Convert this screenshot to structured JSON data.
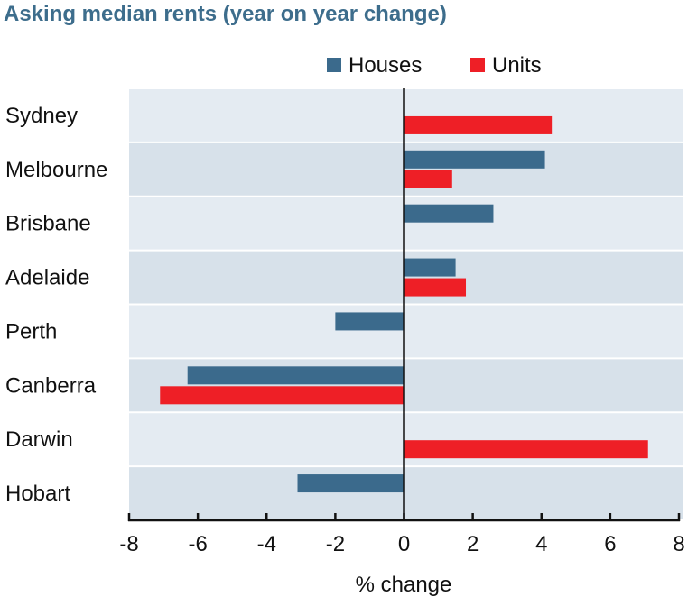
{
  "chart_data": {
    "type": "bar",
    "orientation": "horizontal",
    "title": "Asking median rents (year on year change)",
    "xlabel": "% change",
    "ylabel": "",
    "categories": [
      "Sydney",
      "Melbourne",
      "Brisbane",
      "Adelaide",
      "Perth",
      "Canberra",
      "Darwin",
      "Hobart"
    ],
    "series": [
      {
        "name": "Houses",
        "color": "#3b6a8c",
        "values": [
          0.0,
          4.1,
          2.6,
          1.5,
          -2.0,
          -6.3,
          0.0,
          -3.1
        ]
      },
      {
        "name": "Units",
        "color": "#ee1f26",
        "values": [
          4.3,
          1.4,
          0.0,
          1.8,
          0.0,
          -7.1,
          7.1,
          0.0
        ]
      }
    ],
    "xlim": [
      -8,
      8
    ],
    "xticks": [
      -8,
      -6,
      -4,
      -2,
      0,
      2,
      4,
      6,
      8
    ],
    "legend_position": "top",
    "row_colors": [
      "#e4ebf2",
      "#d7e1ea"
    ]
  }
}
